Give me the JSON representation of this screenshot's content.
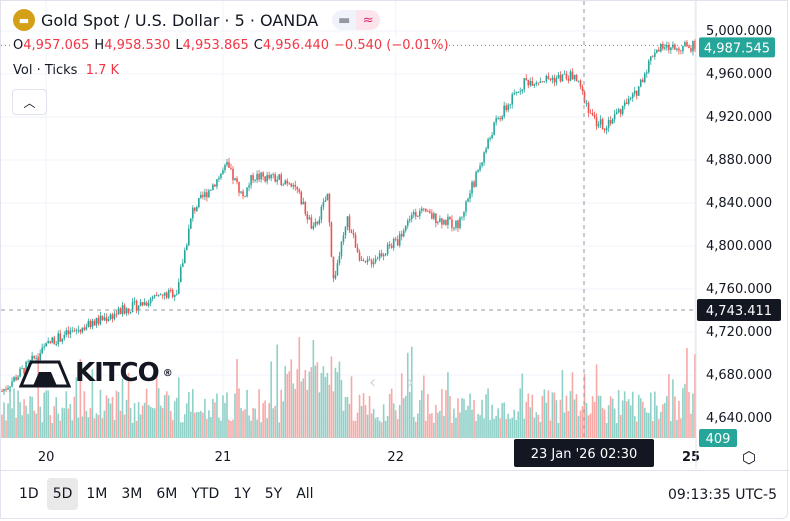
{
  "header": {
    "title": "Gold Spot / U.S. Dollar · 5 · OANDA",
    "ohlc": {
      "o_label": "O",
      "o": "4,957.065",
      "h_label": "H",
      "h": "4,958.530",
      "l_label": "L",
      "l": "4,953.865",
      "c_label": "C",
      "c": "4,956.440",
      "change": "−0.540 (−0.01%)"
    },
    "vol_label": "Vol · Ticks",
    "vol_value": "1.7 K"
  },
  "logo": "KITCO",
  "colors": {
    "up": "#26a69a",
    "down": "#ef5350",
    "vol_up": "#8fd0c7",
    "vol_down": "#f7a9a7",
    "last": "#26a69a",
    "cross": "#131722"
  },
  "chart_data": {
    "type": "candlestick",
    "price_axis_ticks": [
      "5,000.000",
      "4,960.000",
      "4,920.000",
      "4,880.000",
      "4,840.000",
      "4,800.000",
      "4,760.000",
      "4,720.000",
      "4,680.000",
      "4,640.000"
    ],
    "ylim": [
      4630,
      5002
    ],
    "time_axis_ticks": [
      {
        "label": "20",
        "bar": 22
      },
      {
        "label": "21",
        "bar": 110
      },
      {
        "label": "22",
        "bar": 196
      },
      {
        "label": "25",
        "bar": 345
      }
    ],
    "bars": 346,
    "path": [
      [
        0,
        4665
      ],
      [
        25,
        4712
      ],
      [
        60,
        4740
      ],
      [
        87,
        4758
      ],
      [
        95,
        4833
      ],
      [
        112,
        4874
      ],
      [
        120,
        4846
      ],
      [
        125,
        4865
      ],
      [
        145,
        4860
      ],
      [
        155,
        4814
      ],
      [
        162,
        4847
      ],
      [
        165,
        4768
      ],
      [
        172,
        4823
      ],
      [
        180,
        4781
      ],
      [
        197,
        4805
      ],
      [
        205,
        4833
      ],
      [
        227,
        4819
      ],
      [
        235,
        4860
      ],
      [
        245,
        4912
      ],
      [
        260,
        4953
      ],
      [
        285,
        4958
      ],
      [
        295,
        4916
      ],
      [
        300,
        4912
      ],
      [
        315,
        4940
      ],
      [
        325,
        4983
      ],
      [
        345,
        4986
      ]
    ],
    "last_price": "4,987.545",
    "crosshair_price": "4,743.411",
    "crosshair_time": "23 Jan '26   02:30",
    "volume_label": "409"
  },
  "toolbar": {
    "ranges": [
      "1D",
      "5D",
      "1M",
      "3M",
      "6M",
      "YTD",
      "1Y",
      "5Y",
      "All"
    ],
    "selected": "5D",
    "clock": "09:13:35 UTC-5"
  }
}
